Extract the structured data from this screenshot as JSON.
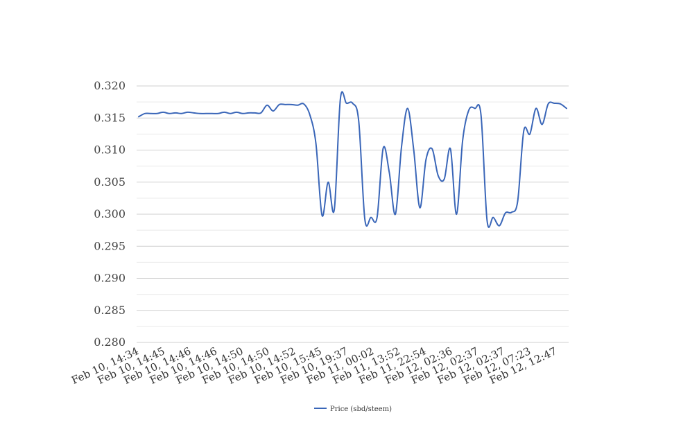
{
  "chart_data": {
    "type": "line",
    "title": "",
    "xlabel": "",
    "ylabel": "",
    "ylim": [
      0.28,
      0.32
    ],
    "y_ticks": [
      "0.280",
      "0.285",
      "0.290",
      "0.295",
      "0.300",
      "0.305",
      "0.310",
      "0.315",
      "0.320"
    ],
    "x_tick_labels": [
      "Feb 10, 14:34",
      "Feb 10, 14:45",
      "Feb 10, 14:46",
      "Feb 10, 14:46",
      "Feb 10, 14:50",
      "Feb 10, 14:50",
      "Feb 10, 14:52",
      "Feb 10, 15:45",
      "Feb 10, 19:37",
      "Feb 11, 00:02",
      "Feb 11, 13:52",
      "Feb 11, 22:54",
      "Feb 12, 02:36",
      "Feb 12, 02:37",
      "Feb 12, 02:37",
      "Feb 12, 07:23",
      "Feb 12, 12:47"
    ],
    "grid": true,
    "legend_position": "bottom",
    "series": [
      {
        "name": "Price (sbd/steem)",
        "color": "#3a66b8",
        "values": [
          0.3152,
          0.3157,
          0.3157,
          0.3157,
          0.3159,
          0.3157,
          0.3158,
          0.3157,
          0.3159,
          0.3158,
          0.3157,
          0.3157,
          0.3157,
          0.3157,
          0.3159,
          0.3157,
          0.3159,
          0.3157,
          0.3158,
          0.3158,
          0.3158,
          0.317,
          0.3161,
          0.3171,
          0.3171,
          0.3171,
          0.317,
          0.3172,
          0.3155,
          0.311,
          0.2998,
          0.305,
          0.3007,
          0.318,
          0.3173,
          0.3173,
          0.3145,
          0.2992,
          0.2995,
          0.2995,
          0.3103,
          0.3065,
          0.3,
          0.3105,
          0.3165,
          0.31,
          0.301,
          0.3085,
          0.3102,
          0.306,
          0.3055,
          0.3102,
          0.3,
          0.3115,
          0.3162,
          0.3165,
          0.3155,
          0.299,
          0.2995,
          0.2982,
          0.3002,
          0.3003,
          0.302,
          0.313,
          0.3125,
          0.3165,
          0.314,
          0.3172,
          0.3173,
          0.3172,
          0.3165
        ]
      }
    ]
  }
}
